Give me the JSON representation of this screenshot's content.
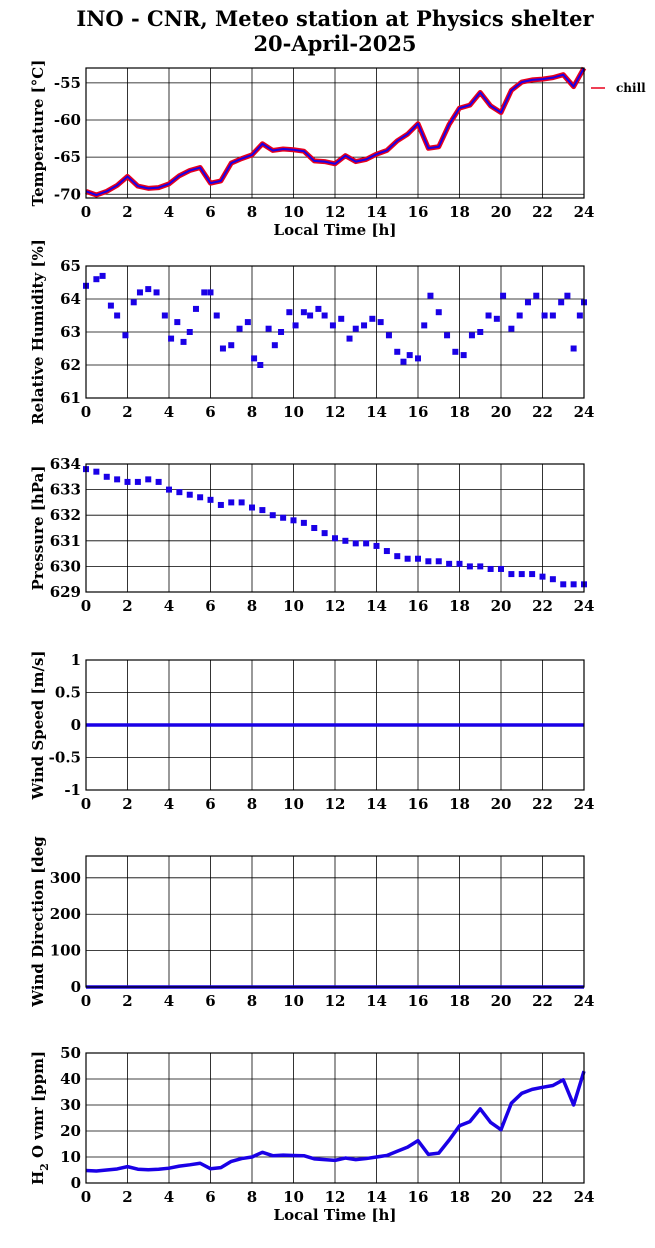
{
  "figure": {
    "title_line1": "INO - CNR, Meteo station at Physics shelter",
    "title_line2": "20-April-2025"
  },
  "chart_data": [
    {
      "type": "line",
      "ylabel": "Temperature [°C]",
      "xlabel": "Local Time [h]",
      "xlim": [
        0,
        24
      ],
      "ylim": [
        -70.5,
        -53
      ],
      "xticks": [
        0,
        2,
        4,
        6,
        8,
        10,
        12,
        14,
        16,
        18,
        20,
        22,
        24
      ],
      "yticks": [
        -70,
        -65,
        -60,
        -55
      ],
      "grid": true,
      "legend_position": "right of plot, top",
      "series": [
        {
          "name": "chill",
          "color": "#e8001c",
          "x": [
            0,
            0.5,
            1,
            1.5,
            2,
            2.5,
            3,
            3.5,
            4,
            4.5,
            5,
            5.5,
            6,
            6.5,
            7,
            7.5,
            8,
            8.5,
            9,
            9.5,
            10,
            10.5,
            11,
            11.5,
            12,
            12.5,
            13,
            13.5,
            14,
            14.5,
            15,
            15.5,
            16,
            16.5,
            17,
            17.5,
            18,
            18.5,
            19,
            19.5,
            20,
            20.5,
            21,
            21.5,
            22,
            22.5,
            23,
            23.5,
            24
          ],
          "values": [
            -69.6,
            -70.1,
            -69.6,
            -68.8,
            -67.6,
            -68.9,
            -69.2,
            -69.1,
            -68.6,
            -67.5,
            -66.8,
            -66.4,
            -68.5,
            -68.2,
            -65.8,
            -65.2,
            -64.7,
            -63.2,
            -64.1,
            -63.9,
            -64.0,
            -64.2,
            -65.5,
            -65.6,
            -65.9,
            -64.8,
            -65.6,
            -65.3,
            -64.6,
            -64.1,
            -62.8,
            -61.9,
            -60.5,
            -63.8,
            -63.6,
            -60.6,
            -58.4,
            -58.0,
            -56.3,
            -58.1,
            -59.0,
            -56.0,
            -54.9,
            -54.6,
            -54.5,
            -54.3,
            -53.9,
            -55.5,
            -53.0
          ]
        },
        {
          "name": "",
          "color": "#1a00e6",
          "x": [
            0,
            0.5,
            1,
            1.5,
            2,
            2.5,
            3,
            3.5,
            4,
            4.5,
            5,
            5.5,
            6,
            6.5,
            7,
            7.5,
            8,
            8.5,
            9,
            9.5,
            10,
            10.5,
            11,
            11.5,
            12,
            12.5,
            13,
            13.5,
            14,
            14.5,
            15,
            15.5,
            16,
            16.5,
            17,
            17.5,
            18,
            18.5,
            19,
            19.5,
            20,
            20.5,
            21,
            21.5,
            22,
            22.5,
            23,
            23.5,
            24
          ],
          "values": [
            -69.6,
            -70.1,
            -69.6,
            -68.8,
            -67.6,
            -68.9,
            -69.2,
            -69.1,
            -68.6,
            -67.5,
            -66.8,
            -66.4,
            -68.5,
            -68.2,
            -65.8,
            -65.2,
            -64.7,
            -63.2,
            -64.1,
            -63.9,
            -64.0,
            -64.2,
            -65.5,
            -65.6,
            -65.9,
            -64.8,
            -65.6,
            -65.3,
            -64.6,
            -64.1,
            -62.8,
            -61.9,
            -60.5,
            -63.8,
            -63.6,
            -60.6,
            -58.4,
            -58.0,
            -56.3,
            -58.1,
            -59.0,
            -56.0,
            -54.9,
            -54.6,
            -54.5,
            -54.3,
            -53.9,
            -55.5,
            -53.0
          ]
        }
      ]
    },
    {
      "type": "scatter",
      "ylabel": "Relative Humidity [%]",
      "xlim": [
        0,
        24
      ],
      "ylim": [
        61,
        65
      ],
      "xticks": [
        0,
        2,
        4,
        6,
        8,
        10,
        12,
        14,
        16,
        18,
        20,
        22,
        24
      ],
      "yticks": [
        61,
        62,
        63,
        64,
        65
      ],
      "grid": true,
      "series": [
        {
          "color": "#1a00e6",
          "x": [
            0,
            0.5,
            0.8,
            1.2,
            1.5,
            1.9,
            2.3,
            2.6,
            3.0,
            3.4,
            3.8,
            4.1,
            4.4,
            4.7,
            5.0,
            5.3,
            5.7,
            6.0,
            6.3,
            6.6,
            7.0,
            7.4,
            7.8,
            8.1,
            8.4,
            8.8,
            9.1,
            9.4,
            9.8,
            10.1,
            10.5,
            10.8,
            11.2,
            11.5,
            11.9,
            12.3,
            12.7,
            13.0,
            13.4,
            13.8,
            14.2,
            14.6,
            15.0,
            15.3,
            15.6,
            16.0,
            16.3,
            16.6,
            17.0,
            17.4,
            17.8,
            18.2,
            18.6,
            19.0,
            19.4,
            19.8,
            20.1,
            20.5,
            20.9,
            21.3,
            21.7,
            22.1,
            22.5,
            22.9,
            23.2,
            23.5,
            23.8,
            24.0
          ],
          "values": [
            64.4,
            64.6,
            64.7,
            63.8,
            63.5,
            62.9,
            63.9,
            64.2,
            64.3,
            64.2,
            63.5,
            62.8,
            63.3,
            62.7,
            63.0,
            63.7,
            64.2,
            64.2,
            63.5,
            62.5,
            62.6,
            63.1,
            63.3,
            62.2,
            62.0,
            63.1,
            62.6,
            63.0,
            63.6,
            63.2,
            63.6,
            63.5,
            63.7,
            63.5,
            63.2,
            63.4,
            62.8,
            63.1,
            63.2,
            63.4,
            63.3,
            62.9,
            62.4,
            62.1,
            62.3,
            62.2,
            63.2,
            64.1,
            63.6,
            62.9,
            62.4,
            62.3,
            62.9,
            63.0,
            63.5,
            63.4,
            64.1,
            63.1,
            63.5,
            63.9,
            64.1,
            63.5,
            63.5,
            63.9,
            64.1,
            62.5,
            63.5,
            63.9
          ]
        }
      ]
    },
    {
      "type": "scatter",
      "ylabel": "Pressure [hPa]",
      "xlim": [
        0,
        24
      ],
      "ylim": [
        629,
        634
      ],
      "xticks": [
        0,
        2,
        4,
        6,
        8,
        10,
        12,
        14,
        16,
        18,
        20,
        22,
        24
      ],
      "yticks": [
        629,
        630,
        631,
        632,
        633,
        634
      ],
      "grid": true,
      "series": [
        {
          "color": "#1a00e6",
          "x": [
            0,
            0.5,
            1,
            1.5,
            2,
            2.5,
            3,
            3.5,
            4,
            4.5,
            5,
            5.5,
            6,
            6.5,
            7,
            7.5,
            8,
            8.5,
            9,
            9.5,
            10,
            10.5,
            11,
            11.5,
            12,
            12.5,
            13,
            13.5,
            14,
            14.5,
            15,
            15.5,
            16,
            16.5,
            17,
            17.5,
            18,
            18.5,
            19,
            19.5,
            20,
            20.5,
            21,
            21.5,
            22,
            22.5,
            23,
            23.5,
            24
          ],
          "values": [
            633.8,
            633.7,
            633.5,
            633.4,
            633.3,
            633.3,
            633.4,
            633.3,
            633.0,
            632.9,
            632.8,
            632.7,
            632.6,
            632.4,
            632.5,
            632.5,
            632.3,
            632.2,
            632.0,
            631.9,
            631.8,
            631.7,
            631.5,
            631.3,
            631.1,
            631.0,
            630.9,
            630.9,
            630.8,
            630.6,
            630.4,
            630.3,
            630.3,
            630.2,
            630.2,
            630.1,
            630.1,
            630.0,
            630.0,
            629.9,
            629.9,
            629.7,
            629.7,
            629.7,
            629.6,
            629.5,
            629.3,
            629.3,
            629.3
          ]
        }
      ]
    },
    {
      "type": "line",
      "ylabel": "Wind Speed [m/s]",
      "xlim": [
        0,
        24
      ],
      "ylim": [
        -1,
        1
      ],
      "xticks": [
        0,
        2,
        4,
        6,
        8,
        10,
        12,
        14,
        16,
        18,
        20,
        22,
        24
      ],
      "yticks": [
        -1,
        -0.5,
        0,
        0.5,
        1
      ],
      "grid": true,
      "series": [
        {
          "color": "#1a00e6",
          "x": [
            0,
            24
          ],
          "values": [
            0,
            0
          ]
        }
      ]
    },
    {
      "type": "line",
      "ylabel": "Wind Direction [deg",
      "xlim": [
        0,
        24
      ],
      "ylim": [
        0,
        360
      ],
      "xticks": [
        0,
        2,
        4,
        6,
        8,
        10,
        12,
        14,
        16,
        18,
        20,
        22,
        24
      ],
      "yticks": [
        0,
        100,
        200,
        300
      ],
      "grid": true,
      "series": [
        {
          "color": "#1a00e6",
          "x": [
            0,
            24
          ],
          "values": [
            0,
            0
          ]
        }
      ]
    },
    {
      "type": "line",
      "ylabel_main": "H",
      "ylabel_sub": "2",
      "ylabel_rest": "O vmr [ppm]",
      "xlabel": "Local Time [h]",
      "xlim": [
        0,
        24
      ],
      "ylim": [
        0,
        50
      ],
      "xticks": [
        0,
        2,
        4,
        6,
        8,
        10,
        12,
        14,
        16,
        18,
        20,
        22,
        24
      ],
      "yticks": [
        0,
        10,
        20,
        30,
        40,
        50
      ],
      "grid": true,
      "series": [
        {
          "color": "#1a00e6",
          "x": [
            0,
            0.5,
            1,
            1.5,
            2,
            2.5,
            3,
            3.5,
            4,
            4.5,
            5,
            5.5,
            6,
            6.5,
            7,
            7.5,
            8,
            8.5,
            9,
            9.5,
            10,
            10.5,
            11,
            11.5,
            12,
            12.5,
            13,
            13.5,
            14,
            14.5,
            15,
            15.5,
            16,
            16.5,
            17,
            17.5,
            18,
            18.5,
            19,
            19.5,
            20,
            20.5,
            21,
            21.5,
            22,
            22.5,
            23,
            23.5,
            24
          ],
          "values": [
            4.8,
            4.6,
            5.0,
            5.4,
            6.3,
            5.3,
            5.1,
            5.3,
            5.7,
            6.5,
            7.0,
            7.6,
            5.5,
            5.9,
            8.3,
            9.4,
            10.0,
            11.8,
            10.5,
            10.7,
            10.6,
            10.5,
            9.3,
            9.0,
            8.7,
            9.6,
            9.0,
            9.4,
            10.0,
            10.6,
            12.2,
            13.8,
            16.3,
            11.0,
            11.5,
            16.5,
            22.0,
            23.6,
            28.5,
            23.3,
            20.5,
            30.7,
            34.5,
            36.0,
            36.8,
            37.5,
            39.7,
            30.0,
            43.0
          ]
        }
      ]
    }
  ]
}
